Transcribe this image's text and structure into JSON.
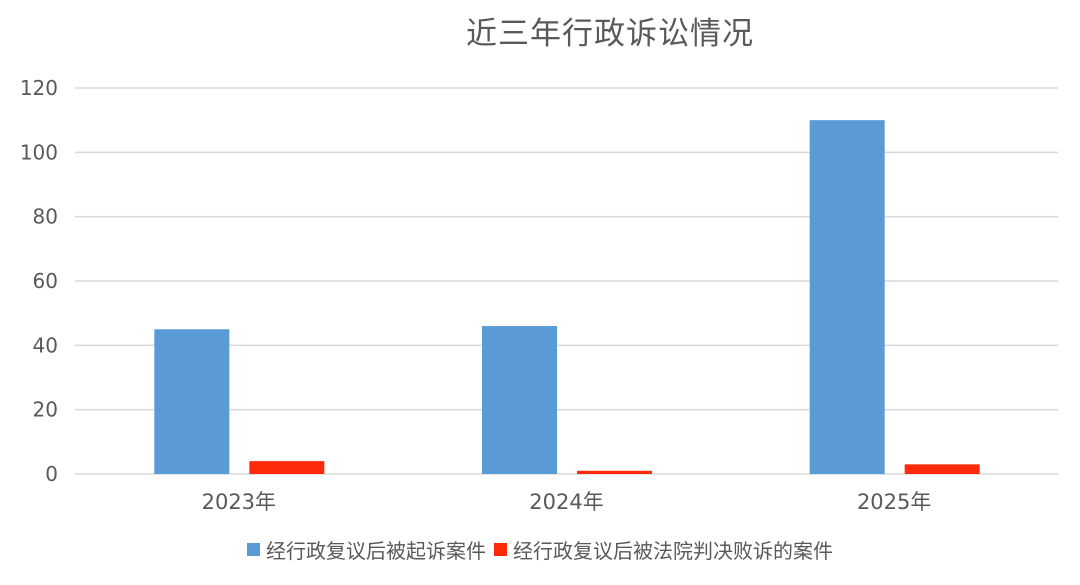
{
  "chart_data": {
    "type": "bar",
    "title": "近三年行政诉讼情况",
    "categories": [
      "2023年",
      "2024年",
      "2025年"
    ],
    "series": [
      {
        "name": "经行政复议后被起诉案件",
        "values": [
          45,
          46,
          110
        ],
        "color": "#5b9bd5"
      },
      {
        "name": "经行政复议后被法院判决败诉的案件",
        "values": [
          4,
          1,
          3
        ],
        "color": "#ff2a0a"
      }
    ],
    "ylim": [
      0,
      120
    ],
    "yticks": [
      0,
      20,
      40,
      60,
      80,
      100,
      120
    ],
    "grid": true,
    "legend_position": "bottom"
  }
}
